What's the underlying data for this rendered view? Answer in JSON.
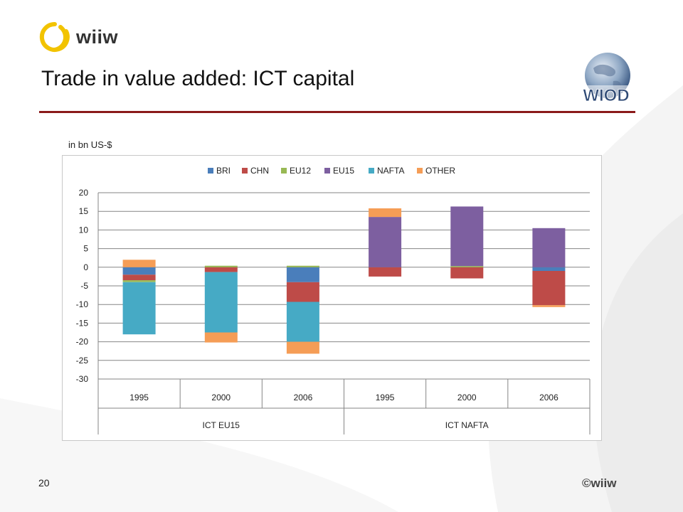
{
  "header": {
    "logo_text": "wiiw",
    "title": "Trade in value added: ICT capital",
    "wiod_logo_text": "WIOD"
  },
  "chart_unit_label": "in bn US-$",
  "footer": {
    "page_number": "20",
    "copyright": "©wiiw"
  },
  "colors": {
    "BRI": "#4a7ebb",
    "CHN": "#be4b48",
    "EU12": "#98b954",
    "EU15": "#7d5fa0",
    "NAFTA": "#46aac5",
    "OTHER": "#f59d56",
    "rule": "#8b1a1a"
  },
  "chart_data": {
    "type": "bar",
    "stacked": true,
    "title": "",
    "xlabel": "",
    "ylabel": "in bn US-$",
    "ylim": [
      -30,
      20
    ],
    "yticks": [
      20,
      15,
      10,
      5,
      0,
      -5,
      -10,
      -15,
      -20,
      -25,
      -30
    ],
    "grid": true,
    "legend_position": "top",
    "categories": [
      "1995",
      "2000",
      "2006",
      "1995",
      "2000",
      "2006"
    ],
    "groups": [
      {
        "label": "ICT EU15",
        "categories": [
          0,
          1,
          2
        ]
      },
      {
        "label": "ICT NAFTA",
        "categories": [
          3,
          4,
          5
        ]
      }
    ],
    "series": [
      {
        "name": "BRI",
        "values": [
          -2.0,
          0,
          -4.0,
          0,
          0,
          -1.0
        ]
      },
      {
        "name": "CHN",
        "values": [
          -1.5,
          -1.3,
          -5.3,
          -2.5,
          -3.0,
          -9.2
        ]
      },
      {
        "name": "EU12",
        "values": [
          -0.5,
          0.4,
          0.4,
          0,
          0.3,
          0
        ]
      },
      {
        "name": "EU15",
        "values": [
          0,
          0,
          0,
          13.5,
          16.0,
          10.5
        ]
      },
      {
        "name": "NAFTA",
        "values": [
          -14.0,
          -16.2,
          -10.7,
          0,
          0,
          0
        ]
      },
      {
        "name": "OTHER",
        "values": [
          2.0,
          -2.7,
          -3.2,
          2.3,
          0,
          -0.5
        ]
      }
    ]
  }
}
